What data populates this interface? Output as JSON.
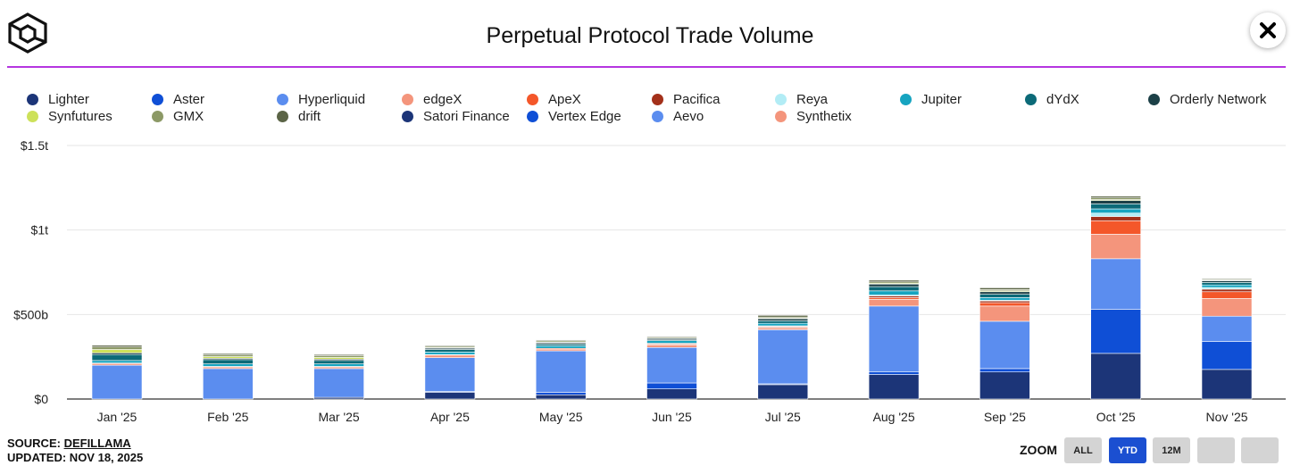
{
  "header": {
    "title": "Perpetual Protocol Trade Volume"
  },
  "footer": {
    "source_prefix": "SOURCE: ",
    "source_link": "DEFILLAMA",
    "updated": "UPDATED: NOV 18, 2025",
    "zoom_label": "ZOOM",
    "zoom_buttons": [
      "ALL",
      "YTD",
      "12M",
      "",
      ""
    ],
    "zoom_active": 1
  },
  "colors": {
    "accent_rule": "#b536e0",
    "active_button": "#1b4fd1"
  },
  "chart_data": {
    "type": "bar",
    "stacked": true,
    "title": "Perpetual Protocol Trade Volume",
    "xlabel": "",
    "ylabel": "",
    "ylim": [
      0,
      1500
    ],
    "unit": "billions USD",
    "y_ticks": [
      0,
      500,
      1000,
      1500
    ],
    "y_tick_labels": [
      "$0",
      "$500b",
      "$1t",
      "$1.5t"
    ],
    "grid": true,
    "legend_position": "top",
    "categories": [
      "Jan '25",
      "Feb '25",
      "Mar '25",
      "Apr '25",
      "May '25",
      "Jun '25",
      "Jul '25",
      "Aug '25",
      "Sep '25",
      "Oct '25",
      "Nov '25"
    ],
    "series": [
      {
        "name": "Lighter",
        "color": "#1c3578",
        "values": [
          0,
          0,
          10,
          40,
          25,
          60,
          85,
          145,
          160,
          270,
          175
        ]
      },
      {
        "name": "Aster",
        "color": "#0f4fd6",
        "values": [
          0,
          0,
          0,
          5,
          15,
          35,
          5,
          15,
          20,
          260,
          165
        ]
      },
      {
        "name": "Hyperliquid",
        "color": "#5b8def",
        "values": [
          200,
          180,
          170,
          200,
          245,
          210,
          320,
          390,
          280,
          300,
          150
        ]
      },
      {
        "name": "edgeX",
        "color": "#f4957c",
        "values": [
          10,
          10,
          10,
          15,
          10,
          15,
          10,
          40,
          90,
          145,
          105
        ]
      },
      {
        "name": "ApeX",
        "color": "#f4572a",
        "values": [
          3,
          3,
          3,
          3,
          5,
          5,
          5,
          10,
          20,
          80,
          40
        ]
      },
      {
        "name": "Pacifica",
        "color": "#a3301a",
        "values": [
          0,
          0,
          0,
          0,
          0,
          5,
          5,
          10,
          10,
          25,
          15
        ]
      },
      {
        "name": "Reya",
        "color": "#b2ecf5",
        "values": [
          0,
          0,
          0,
          0,
          0,
          0,
          3,
          5,
          5,
          20,
          10
        ]
      },
      {
        "name": "Jupiter",
        "color": "#16a4c0",
        "values": [
          15,
          15,
          15,
          15,
          15,
          15,
          15,
          25,
          15,
          25,
          15
        ]
      },
      {
        "name": "dYdX",
        "color": "#0c6a78",
        "values": [
          35,
          25,
          20,
          15,
          10,
          5,
          15,
          25,
          20,
          30,
          15
        ]
      },
      {
        "name": "Orderly Network",
        "color": "#1c4047",
        "values": [
          10,
          8,
          8,
          8,
          8,
          8,
          12,
          15,
          15,
          20,
          10
        ]
      },
      {
        "name": "Synfutures",
        "color": "#cde15a",
        "values": [
          20,
          10,
          10,
          3,
          3,
          3,
          3,
          5,
          5,
          5,
          3
        ]
      },
      {
        "name": "GMX",
        "color": "#8c9966",
        "values": [
          15,
          10,
          10,
          8,
          8,
          5,
          7,
          8,
          8,
          10,
          5
        ]
      },
      {
        "name": "drift",
        "color": "#5b6446",
        "values": [
          10,
          8,
          7,
          5,
          5,
          5,
          10,
          10,
          10,
          10,
          5
        ]
      },
      {
        "name": "Satori Finance",
        "color": "#1c3578",
        "values": [
          0,
          0,
          0,
          0,
          0,
          0,
          0,
          0,
          0,
          0,
          0
        ]
      },
      {
        "name": "Vertex Edge",
        "color": "#0f4fd6",
        "values": [
          0,
          0,
          0,
          0,
          0,
          0,
          0,
          0,
          0,
          0,
          0
        ]
      },
      {
        "name": "Aevo",
        "color": "#5b8def",
        "values": [
          0,
          0,
          0,
          0,
          0,
          0,
          0,
          0,
          0,
          0,
          0
        ]
      },
      {
        "name": "Synthetix",
        "color": "#f4957c",
        "values": [
          0,
          0,
          0,
          0,
          0,
          0,
          0,
          0,
          0,
          0,
          0
        ]
      }
    ]
  }
}
